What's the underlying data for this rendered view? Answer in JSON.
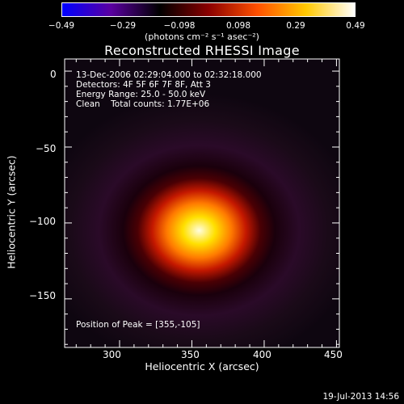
{
  "chart_data": {
    "type": "heatmap",
    "title": "Reconstructed RHESSI Image",
    "xlabel": "Heliocentric X (arcsec)",
    "ylabel": "Heliocentric Y (arcsec)",
    "xlim": [
      262,
      452
    ],
    "ylim": [
      -182,
      8
    ],
    "x_ticks": [
      "300",
      "350",
      "400",
      "450"
    ],
    "y_ticks": [
      "0",
      "−50",
      "−100",
      "−150"
    ],
    "colorbar": {
      "ticks": [
        "−0.49",
        "−0.29",
        "−0.098",
        "0.098",
        "0.29",
        "0.49"
      ],
      "units": "(photons cm⁻² s⁻¹ asec⁻²)",
      "range": [
        -0.49,
        0.49
      ],
      "colors": [
        "#0000ff",
        "#5a00a0",
        "#000000",
        "#8a0000",
        "#ff5000",
        "#ffc800",
        "#ffffff"
      ]
    },
    "info_lines": [
      "13-Dec-2006 02:29:04.000 to 02:32:18.000",
      "Detectors: 4F 5F 6F 7F 8F, Att 3",
      "Energy Range: 25.0 - 50.0 keV",
      "Clean    Total counts: 1.77E+06"
    ],
    "peak_label": "Position of Peak = [355,-105]",
    "source": {
      "center_x": 355,
      "center_y": -105,
      "peak_value": 0.49
    }
  },
  "datestamp": "19-Jul-2013 14:56"
}
